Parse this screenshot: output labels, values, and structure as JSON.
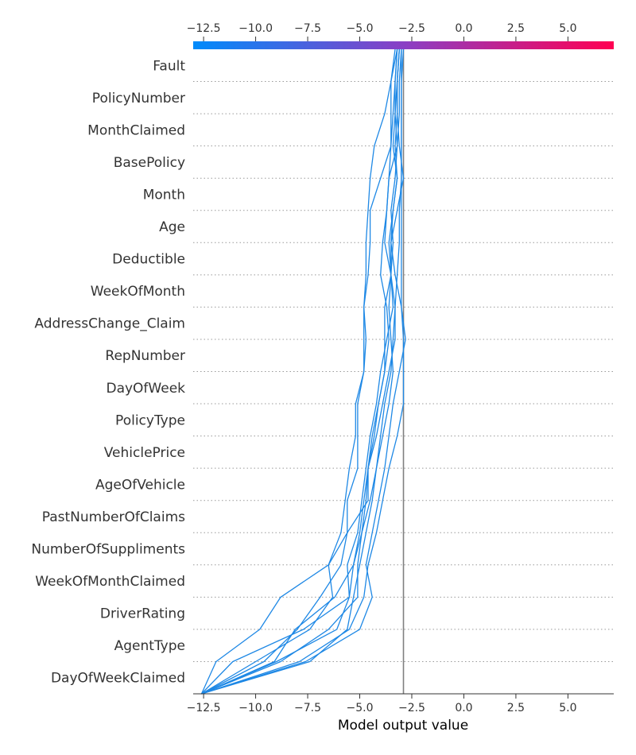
{
  "chart_data": {
    "type": "line",
    "subtype": "shap-decision-plot",
    "xlabel": "Model output value",
    "xlim": [
      -13,
      7.2
    ],
    "xticks": [
      -12.5,
      -10.0,
      -7.5,
      -5.0,
      -2.5,
      0.0,
      2.5,
      5.0
    ],
    "xtick_labels": [
      "−12.5",
      "−10.0",
      "−7.5",
      "−5.0",
      "−2.5",
      "0.0",
      "2.5",
      "5.0"
    ],
    "base_value": -2.9,
    "features_top_to_bottom": [
      "Fault",
      "PolicyNumber",
      "MonthClaimed",
      "BasePolicy",
      "Month",
      "Age",
      "Deductible",
      "WeekOfMonth",
      "AddressChange_Claim",
      "RepNumber",
      "DayOfWeek",
      "PolicyType",
      "VehiclePrice",
      "AgeOfVehicle",
      "PastNumberOfClaims",
      "NumberOfSuppliments",
      "WeekOfMonthClaimed",
      "DriverRating",
      "AgentType",
      "DayOfWeekClaimed"
    ],
    "colorbar": {
      "colors": [
        "#008bfb",
        "#8a3fc5",
        "#ff0052"
      ]
    },
    "line_color": "#1e88e5",
    "grid": "dotted-horizontal",
    "series": [
      {
        "values": [
          -12.6,
          -9.6,
          -8.0,
          -6.9,
          -5.9,
          -5.6,
          -5.6,
          -5.1,
          -5.1,
          -5.1,
          -4.8,
          -4.7,
          -4.8,
          -4.6,
          -4.5,
          -4.5,
          -4.0,
          -3.5,
          -3.5,
          -3.5,
          -3.3
        ]
      },
      {
        "values": [
          -12.6,
          -9.0,
          -6.1,
          -5.5,
          -5.3,
          -4.9,
          -4.7,
          -4.6,
          -4.3,
          -4.1,
          -3.8,
          -3.8,
          -3.8,
          -3.5,
          -3.5,
          -3.4,
          -3.2,
          -3.3,
          -3.2,
          -3.2,
          -3.1
        ]
      },
      {
        "values": [
          -12.6,
          -7.9,
          -5.5,
          -4.8,
          -4.6,
          -4.2,
          -3.9,
          -3.6,
          -3.2,
          -2.9,
          -2.9,
          -2.9,
          -3.0,
          -3.0,
          -3.0,
          -3.0,
          -3.0,
          -3.0,
          -3.0,
          -3.0,
          -3.0
        ]
      },
      {
        "values": [
          -12.6,
          -7.6,
          -5.0,
          -4.4,
          -4.7,
          -4.4,
          -4.1,
          -3.8,
          -3.6,
          -3.4,
          -3.1,
          -2.8,
          -3.0,
          -3.3,
          -3.5,
          -3.2,
          -2.9,
          -3.1,
          -3.2,
          -3.2,
          -3.1
        ]
      },
      {
        "values": [
          -12.6,
          -10.0,
          -7.4,
          -6.3,
          -6.5,
          -5.9,
          -5.7,
          -5.5,
          -5.2,
          -5.2,
          -4.8,
          -4.8,
          -4.8,
          -4.7,
          -4.7,
          -4.6,
          -4.5,
          -4.3,
          -3.8,
          -3.5,
          -3.2
        ]
      },
      {
        "values": [
          -12.6,
          -11.9,
          -9.8,
          -8.8,
          -6.5,
          -5.6,
          -4.6,
          -4.6,
          -4.2,
          -3.9,
          -3.6,
          -3.3,
          -3.3,
          -3.5,
          -3.8,
          -3.7,
          -3.6,
          -3.2,
          -3.3,
          -3.3,
          -3.2
        ]
      },
      {
        "values": [
          -12.6,
          -11.1,
          -7.7,
          -5.5,
          -5.6,
          -5.1,
          -4.9,
          -4.7,
          -4.5,
          -4.2,
          -4.0,
          -3.7,
          -3.4,
          -3.5,
          -3.6,
          -3.4,
          -3.2,
          -3.4,
          -3.3,
          -3.2,
          -3.1
        ]
      },
      {
        "values": [
          -12.6,
          -9.1,
          -8.1,
          -6.2,
          -5.3,
          -5.0,
          -4.8,
          -4.6,
          -4.4,
          -4.1,
          -3.8,
          -3.6,
          -3.7,
          -4.0,
          -3.9,
          -3.7,
          -3.6,
          -3.5,
          -3.4,
          -3.3,
          -3.2
        ]
      },
      {
        "values": [
          -12.6,
          -7.4,
          -5.6,
          -5.3,
          -5.0,
          -4.7,
          -4.4,
          -4.2,
          -3.9,
          -3.6,
          -3.4,
          -3.5,
          -3.6,
          -3.5,
          -3.4,
          -3.5,
          -3.3,
          -3.2,
          -3.1,
          -3.1,
          -3.0
        ]
      },
      {
        "values": [
          -12.6,
          -8.8,
          -6.5,
          -5.1,
          -5.1,
          -4.9,
          -4.5,
          -4.2,
          -4.0,
          -3.8,
          -3.5,
          -3.4,
          -3.3,
          -3.2,
          -3.1,
          -3.1,
          -3.0,
          -3.0,
          -3.0,
          -3.0,
          -2.9
        ]
      }
    ]
  }
}
